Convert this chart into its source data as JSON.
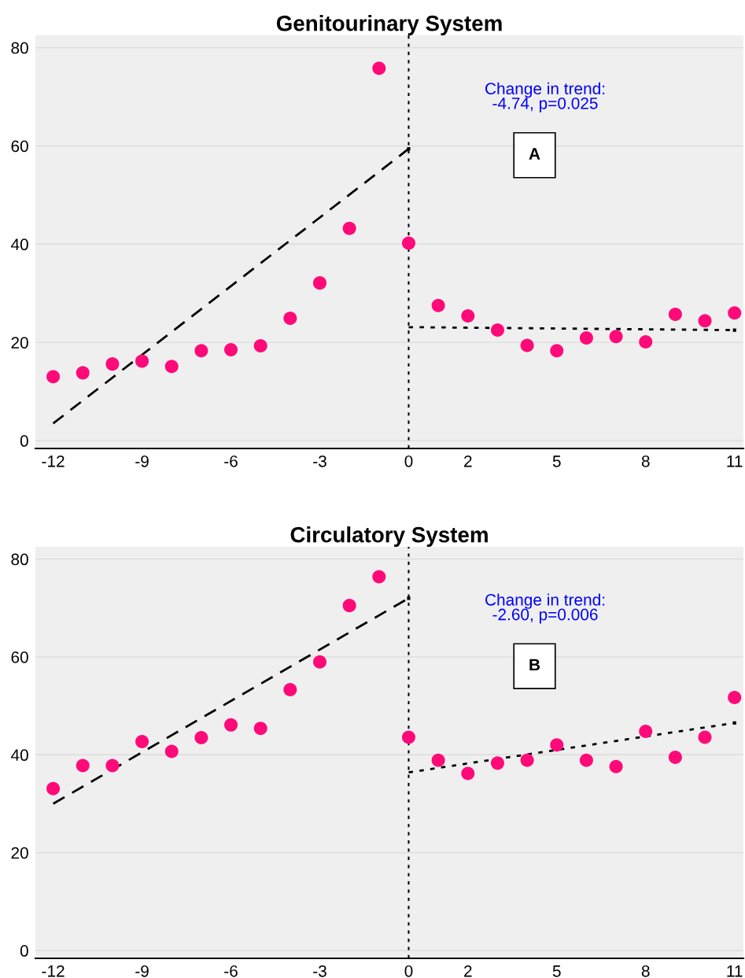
{
  "chart_data": [
    {
      "type": "scatter",
      "title": "Genitourinary System",
      "x": [
        -12,
        -11,
        -10,
        -9,
        -8,
        -7,
        -6,
        -5,
        -4,
        -3,
        -2,
        -1,
        0,
        1,
        2,
        3,
        4,
        5,
        6,
        7,
        8,
        9,
        10,
        11
      ],
      "series": [
        {
          "marker": "circle",
          "color": "#ff0a78",
          "values": [
            13.0,
            13.8,
            15.6,
            16.2,
            15.1,
            18.3,
            18.5,
            19.3,
            24.9,
            32.1,
            43.2,
            75.8,
            40.2,
            27.5,
            25.4,
            22.5,
            19.4,
            18.3,
            20.9,
            21.2,
            20.1,
            25.7,
            24.4,
            26.0
          ]
        },
        {
          "type": "line",
          "color": "#000000",
          "line_style": "dashed",
          "x": [
            -12,
            0
          ],
          "values": [
            3.5,
            59.4
          ]
        },
        {
          "type": "line",
          "color": "#000000",
          "line_style": "dotted",
          "x": [
            0,
            11
          ],
          "values": [
            23.1,
            22.5
          ]
        }
      ],
      "xlim": [
        -12.6,
        11.3
      ],
      "ylim": [
        -1.6,
        82.5
      ],
      "xticks": [
        -12,
        -9,
        -6,
        -3,
        0,
        2,
        5,
        8,
        11
      ],
      "yticks": [
        0,
        20,
        40,
        60,
        80
      ],
      "grid": "y",
      "ref_lines": [
        {
          "axis": "x",
          "value": 0,
          "color": "#000000",
          "line_style": "dotted"
        }
      ],
      "annotations": [
        "Change in trend:\n-4.74, p=0.025",
        "A"
      ]
    },
    {
      "type": "scatter",
      "title": "Circulatory System",
      "x": [
        -12,
        -11,
        -10,
        -9,
        -8,
        -7,
        -6,
        -5,
        -4,
        -3,
        -2,
        -1,
        0,
        1,
        2,
        3,
        4,
        5,
        6,
        7,
        8,
        9,
        10,
        11
      ],
      "series": [
        {
          "marker": "circle",
          "color": "#ff0a78",
          "values": [
            33.1,
            37.8,
            37.8,
            42.7,
            40.7,
            43.5,
            46.1,
            45.4,
            53.3,
            59.0,
            70.5,
            76.4,
            43.6,
            38.9,
            36.2,
            38.3,
            38.9,
            42.0,
            38.9,
            37.6,
            44.8,
            39.5,
            43.6,
            51.7
          ]
        },
        {
          "type": "line",
          "color": "#000000",
          "line_style": "dashed",
          "x": [
            -12,
            0
          ],
          "values": [
            30.0,
            72.0
          ]
        },
        {
          "type": "line",
          "color": "#000000",
          "line_style": "dotted",
          "x": [
            0,
            11
          ],
          "values": [
            36.4,
            46.5
          ]
        }
      ],
      "xlim": [
        -12.6,
        11.3
      ],
      "ylim": [
        -1.6,
        82.5
      ],
      "xticks": [
        -12,
        -9,
        -6,
        -3,
        0,
        2,
        5,
        8,
        11
      ],
      "yticks": [
        0,
        20,
        40,
        60,
        80
      ],
      "grid": "y",
      "ref_lines": [
        {
          "axis": "x",
          "value": 0,
          "color": "#000000",
          "line_style": "dotted"
        }
      ],
      "annotations": [
        "Change in trend:\n-2.60, p=0.006",
        "B"
      ]
    }
  ]
}
